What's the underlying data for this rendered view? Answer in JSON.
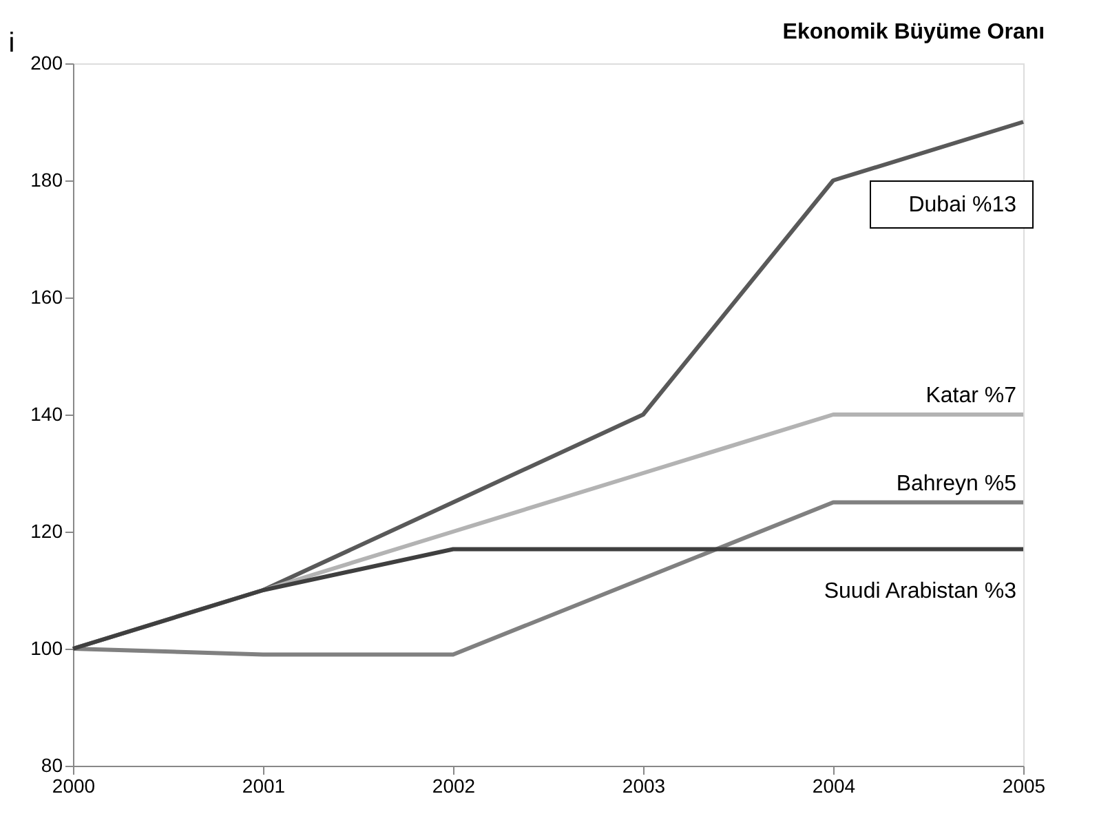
{
  "chart_data": {
    "type": "line",
    "title": "Ekonomik Büyüme Oranı",
    "ylabel": "i",
    "x": [
      2000,
      2001,
      2002,
      2003,
      2004,
      2005
    ],
    "series": [
      {
        "name": "Dubai %13",
        "color": "#595959",
        "values": [
          100,
          110,
          125,
          140,
          180,
          190
        ]
      },
      {
        "name": "Katar %7",
        "color": "#b3b3b3",
        "values": [
          100,
          110,
          120,
          130,
          140,
          140
        ]
      },
      {
        "name": "Bahreyn %5",
        "color": "#808080",
        "values": [
          100,
          99,
          99,
          112,
          125,
          125
        ]
      },
      {
        "name": "Suudi Arabistan %3",
        "color": "#3f3f3f",
        "values": [
          100,
          110,
          117,
          117,
          117,
          117
        ]
      }
    ],
    "xlim": [
      2000,
      2005
    ],
    "xticks": [
      2000,
      2001,
      2002,
      2003,
      2004,
      2005
    ],
    "ylim": [
      80,
      200
    ],
    "yticks": [
      80,
      100,
      120,
      140,
      160,
      180,
      200
    ],
    "grid": false,
    "legend": false,
    "marker": "none",
    "line_style": "solid"
  }
}
